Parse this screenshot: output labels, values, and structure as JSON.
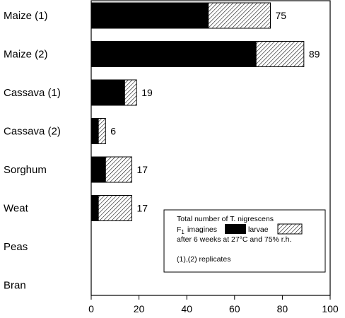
{
  "chart_data": {
    "type": "bar",
    "orientation": "horizontal",
    "stacked": true,
    "categories": [
      "Maize (1)",
      "Maize (2)",
      "Cassava (1)",
      "Cassava (2)",
      "Sorghum",
      "Weat",
      "Peas",
      "Bran"
    ],
    "series": [
      {
        "name": "imagines",
        "values": [
          49,
          69,
          14,
          3,
          6,
          3,
          0,
          0
        ],
        "pattern": "solid",
        "color": "#000000"
      },
      {
        "name": "larvae",
        "values": [
          26,
          20,
          5,
          3,
          11,
          14,
          0,
          0
        ],
        "pattern": "hatched",
        "color": "#ffffff"
      }
    ],
    "totals": [
      "75",
      "89",
      "19",
      "6",
      "17",
      "17",
      "",
      ""
    ],
    "xlim": [
      0,
      100
    ],
    "xticks": [
      "0",
      "20",
      "40",
      "60",
      "80",
      "100"
    ],
    "grid": false,
    "legend": {
      "placement": "bottom-right",
      "title": "Total number of T. nigrescens",
      "prefix": "F",
      "prefix_sub": "1",
      "imagines_label": "imagines",
      "larvae_label": "larvae",
      "conditions": "after 6 weeks at 27°C and 75% r.h.",
      "note": "(1),(2) replicates"
    }
  }
}
